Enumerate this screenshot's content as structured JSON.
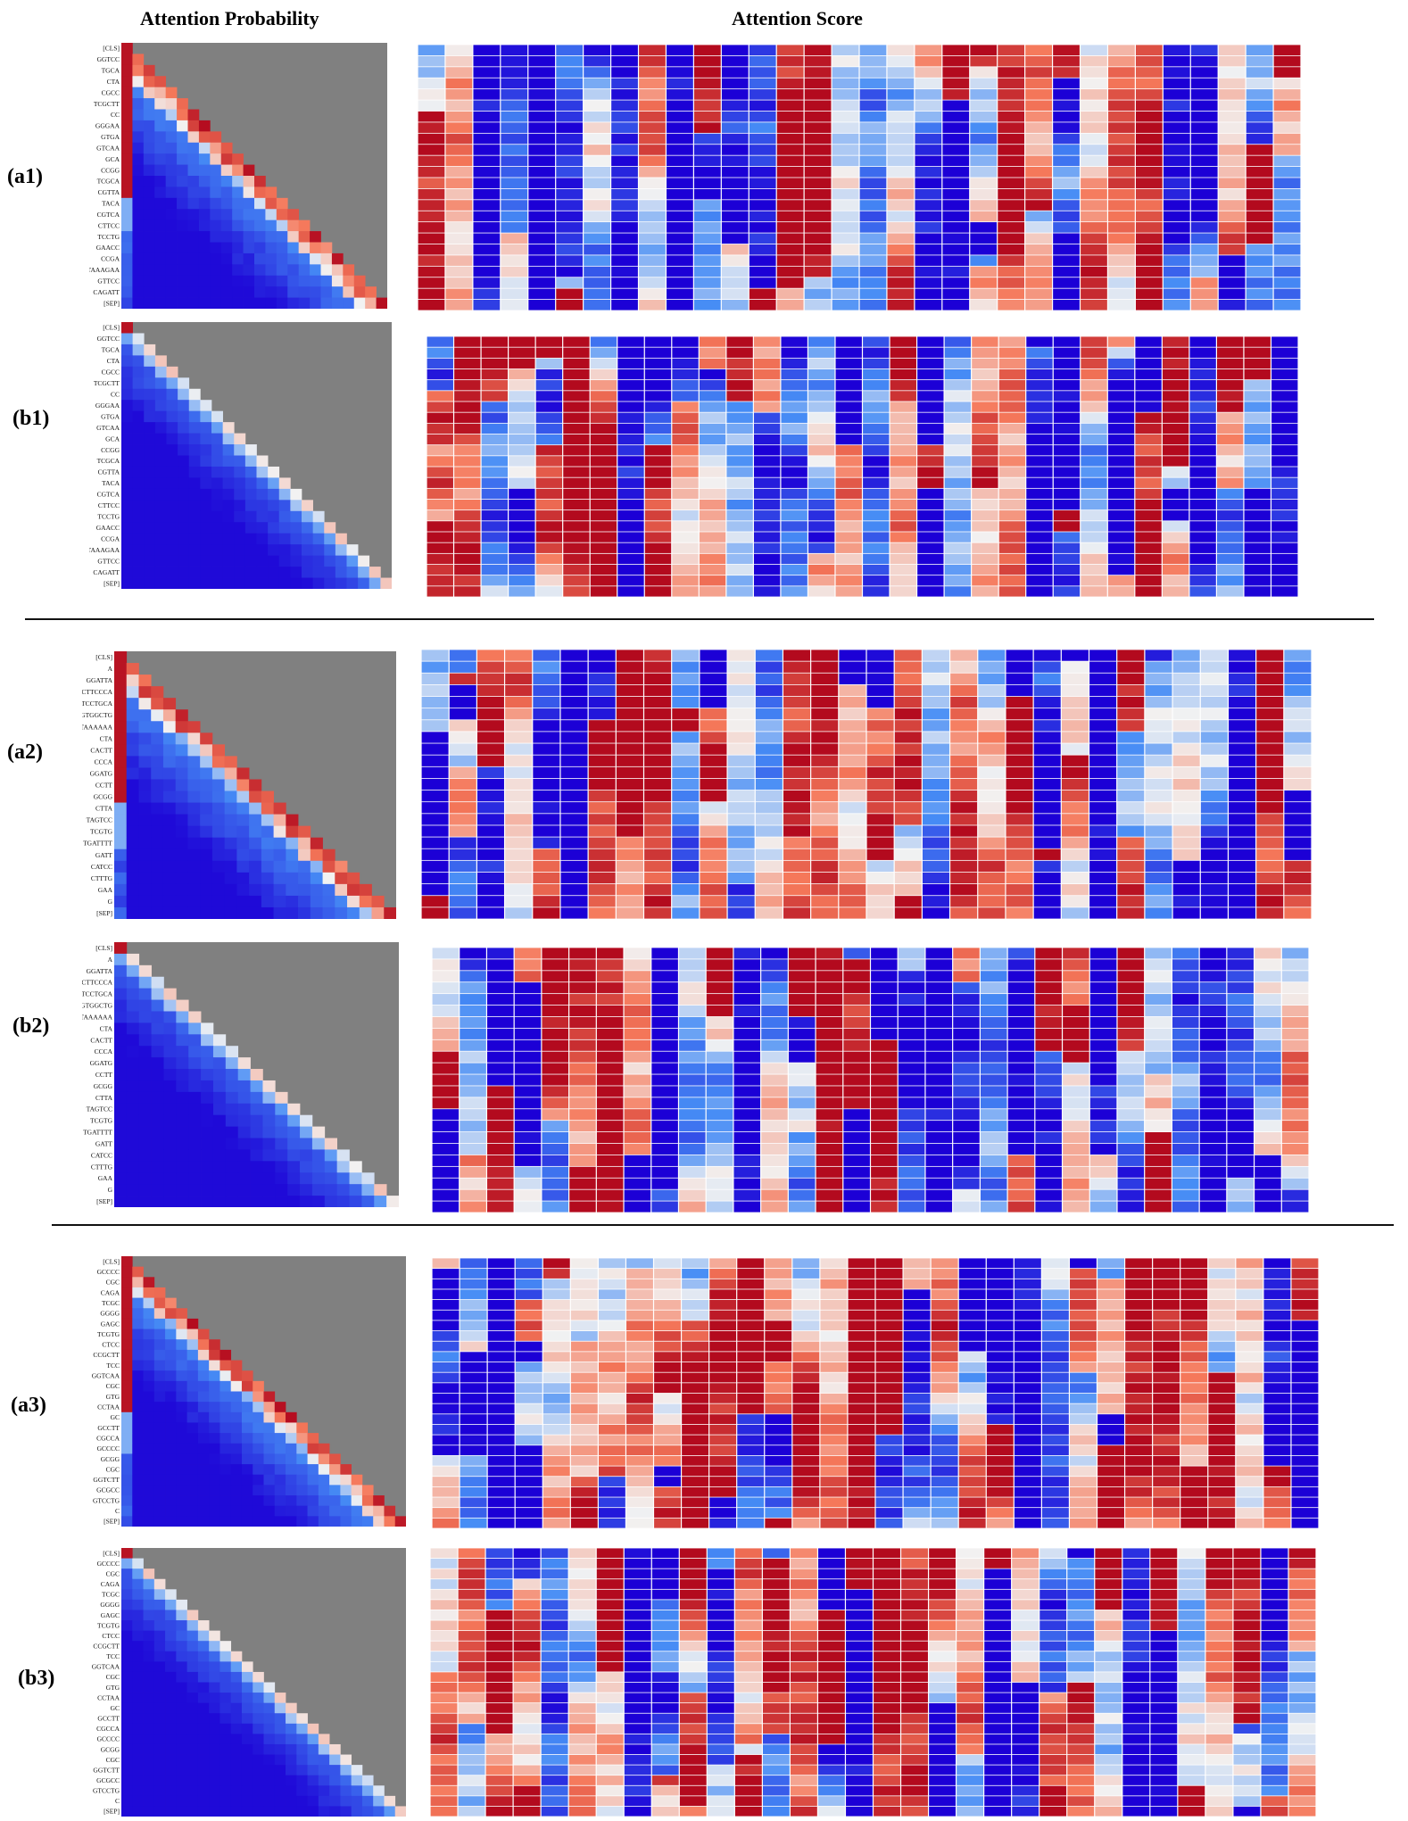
{
  "titles": {
    "probability": "Attention Probability",
    "score": "Attention Score"
  },
  "chart_data": {
    "type": "heatmap",
    "colormap": {
      "low": "#1c00d6",
      "mid": "#f2f2f2",
      "high": "#b30a1e",
      "masked": "#808080"
    },
    "groups": [
      {
        "tokens": [
          "[CLS]",
          "GGTCC",
          "TGCA",
          "CTA",
          "CGCC",
          "TCGCTT",
          "CC",
          "GGGAA",
          "GTGA",
          "GTCAA",
          "GCA",
          "CCGG",
          "TCGCA",
          "CGTTA",
          "TACA",
          "CGTCA",
          "CTTCC",
          "TCCTG",
          "GAACC",
          "CCGA",
          "TAAAGAA",
          "GTTCC",
          "CAGATT",
          "[SEP]"
        ],
        "panels": [
          {
            "label": "(a1)",
            "score_columns": 32,
            "seed": 11
          },
          {
            "label": "(b1)",
            "score_columns": 32,
            "seed": 23
          }
        ]
      },
      {
        "tokens": [
          "[CLS]",
          "A",
          "GGATTA",
          "CTTCCCA",
          "TCCTGCA",
          "GTGGCTG",
          "GTAAAAAA",
          "CTA",
          "CACTT",
          "CCCA",
          "GGATG",
          "CCTT",
          "GCGG",
          "CTTA",
          "TAGTCC",
          "TCGTG",
          "TGATTTT",
          "GATT",
          "CATCC",
          "CTTTG",
          "GAA",
          "G",
          "[SEP]"
        ],
        "panels": [
          {
            "label": "(a2)",
            "score_columns": 32,
            "seed": 37
          },
          {
            "label": "(b2)",
            "score_columns": 32,
            "seed": 41
          }
        ]
      },
      {
        "tokens": [
          "[CLS]",
          "GCCCC",
          "CGC",
          "CAGA",
          "TCGC",
          "GGGG",
          "GAGC",
          "TCGTG",
          "CTCC",
          "CCGCTT",
          "TCC",
          "GGTCAA",
          "CGC",
          "GTG",
          "CCTAA",
          "GC",
          "GCCTT",
          "CGCCA",
          "GCCCC",
          "GCGG",
          "CGC",
          "GGTCTT",
          "GCGCC",
          "GTCCTG",
          "C",
          "[SEP]"
        ],
        "panels": [
          {
            "label": "(a3)",
            "score_columns": 32,
            "seed": 53
          },
          {
            "label": "(b3)",
            "score_columns": 32,
            "seed": 67
          }
        ]
      }
    ]
  }
}
